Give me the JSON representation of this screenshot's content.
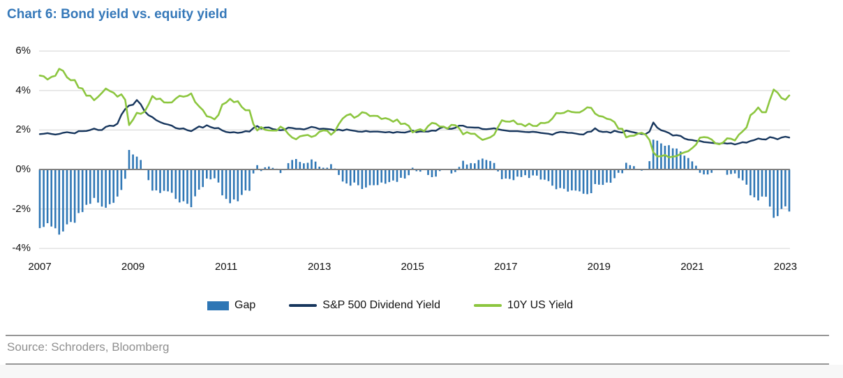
{
  "title": "Chart 6: Bond yield vs. equity yield",
  "footer": {
    "source": "Source: Schroders, Bloomberg"
  },
  "colors": {
    "title_text": "#3578b9",
    "gap_bar": "#2e76b5",
    "dividend_line": "#17365d",
    "treasury_line": "#8cc63f",
    "gridline": "#d9d9d9",
    "zero_line": "#808080",
    "axis_text": "#111111",
    "source_text": "#8f8f8f",
    "rule_line": "#969696",
    "footer_bg": "#f7f7f7"
  },
  "chart_data": {
    "type": "combo-bar-line",
    "title": "Chart 6: Bond yield vs. equity yield",
    "x_start": "2007-01",
    "x_freq": "monthly",
    "grid": "horizontal",
    "legend_position": "bottom-center",
    "ylim": [
      -4.5,
      6.5
    ],
    "y_ticks": [
      {
        "label": "6%",
        "value": 6
      },
      {
        "label": "4%",
        "value": 4
      },
      {
        "label": "2%",
        "value": 2
      },
      {
        "label": "0%",
        "value": 0
      },
      {
        "label": "-2%",
        "value": -2
      },
      {
        "label": "-4%",
        "value": -4
      }
    ],
    "x_ticks": [
      {
        "label": "2007",
        "year": 2007
      },
      {
        "label": "2009",
        "year": 2009
      },
      {
        "label": "2011",
        "year": 2011
      },
      {
        "label": "2013",
        "year": 2013
      },
      {
        "label": "2015",
        "year": 2015
      },
      {
        "label": "2017",
        "year": 2017
      },
      {
        "label": "2019",
        "year": 2019
      },
      {
        "label": "2021",
        "year": 2021
      },
      {
        "label": "2023",
        "year": 2023
      }
    ],
    "series": [
      {
        "name": "Gap",
        "type": "bar",
        "color": "#2e76b5",
        "values": [
          -2.97,
          -2.91,
          -2.72,
          -2.89,
          -2.98,
          -3.3,
          -3.14,
          -2.78,
          -2.66,
          -2.7,
          -2.21,
          -2.16,
          -1.79,
          -1.74,
          -1.44,
          -1.68,
          -1.88,
          -1.94,
          -1.76,
          -1.69,
          -1.37,
          -1.04,
          -0.47,
          0.99,
          0.76,
          0.65,
          0.48,
          0.02,
          -0.54,
          -1.07,
          -1.06,
          -1.19,
          -1.08,
          -1.11,
          -1.18,
          -1.49,
          -1.67,
          -1.61,
          -1.74,
          -1.91,
          -1.36,
          -1.02,
          -0.89,
          -0.46,
          -0.5,
          -0.45,
          -0.66,
          -1.31,
          -1.49,
          -1.71,
          -1.52,
          -1.61,
          -1.29,
          -1.06,
          -1.08,
          -0.2,
          0.22,
          -0.08,
          0.11,
          0.15,
          0.08,
          0.04,
          -0.18,
          -0.04,
          0.32,
          0.48,
          0.53,
          0.38,
          0.31,
          0.34,
          0.51,
          0.4,
          0.14,
          0.09,
          0.09,
          0.27,
          0.05,
          -0.28,
          -0.61,
          -0.71,
          -0.82,
          -0.66,
          -0.8,
          -0.99,
          -0.91,
          -0.8,
          -0.8,
          -0.79,
          -0.66,
          -0.72,
          -0.64,
          -0.56,
          -0.63,
          -0.42,
          -0.46,
          -0.29,
          0.09,
          -0.09,
          -0.11,
          -0.02,
          -0.28,
          -0.39,
          -0.36,
          -0.08,
          -0.01,
          -0.01,
          -0.2,
          -0.13,
          0.13,
          0.44,
          0.25,
          0.32,
          0.31,
          0.48,
          0.55,
          0.48,
          0.43,
          0.33,
          -0.1,
          -0.49,
          -0.46,
          -0.48,
          -0.54,
          -0.36,
          -0.38,
          -0.29,
          -0.43,
          -0.3,
          -0.31,
          -0.51,
          -0.52,
          -0.59,
          -0.82,
          -1.0,
          -0.94,
          -0.98,
          -1.12,
          -1.06,
          -1.07,
          -1.11,
          -1.23,
          -1.25,
          -1.2,
          -0.74,
          -0.77,
          -0.78,
          -0.66,
          -0.67,
          -0.44,
          -0.17,
          -0.19,
          0.34,
          0.22,
          0.17,
          0.02,
          -0.06,
          0.03,
          0.42,
          1.51,
          1.46,
          1.32,
          1.2,
          1.23,
          1.07,
          1.06,
          0.91,
          0.7,
          0.58,
          0.41,
          0.19,
          -0.17,
          -0.25,
          -0.25,
          -0.17,
          0.01,
          0.02,
          -0.03,
          -0.27,
          -0.23,
          -0.2,
          -0.44,
          -0.55,
          -0.77,
          -1.31,
          -1.41,
          -1.57,
          -1.37,
          -1.38,
          -1.88,
          -2.45,
          -2.36,
          -2.0,
          -1.87,
          -2.13
        ]
      },
      {
        "name": "S&P 500 Dividend Yield",
        "type": "line",
        "color": "#17365d",
        "values": [
          1.79,
          1.81,
          1.84,
          1.8,
          1.77,
          1.8,
          1.86,
          1.89,
          1.86,
          1.83,
          1.94,
          1.94,
          1.95,
          2.0,
          2.07,
          2.0,
          2.0,
          2.16,
          2.22,
          2.2,
          2.32,
          2.77,
          3.06,
          3.24,
          3.28,
          3.52,
          3.3,
          2.95,
          2.75,
          2.65,
          2.5,
          2.4,
          2.32,
          2.28,
          2.22,
          2.1,
          2.06,
          2.08,
          1.99,
          1.94,
          2.06,
          2.18,
          2.12,
          2.24,
          2.15,
          2.09,
          2.1,
          1.98,
          1.9,
          1.87,
          1.89,
          1.85,
          1.88,
          1.94,
          1.92,
          2.1,
          2.2,
          2.07,
          2.12,
          2.13,
          2.05,
          2.01,
          1.99,
          2.01,
          2.12,
          2.1,
          2.06,
          2.06,
          2.03,
          2.09,
          2.16,
          2.12,
          2.05,
          2.07,
          2.05,
          2.03,
          1.98,
          2.02,
          1.97,
          2.03,
          1.99,
          1.96,
          1.92,
          1.91,
          1.95,
          1.91,
          1.92,
          1.92,
          1.9,
          1.88,
          1.9,
          1.86,
          1.9,
          1.88,
          1.87,
          1.92,
          1.97,
          1.89,
          1.93,
          1.92,
          1.92,
          1.97,
          1.96,
          2.09,
          2.16,
          2.06,
          2.06,
          2.11,
          2.22,
          2.22,
          2.14,
          2.13,
          2.12,
          2.12,
          2.05,
          2.04,
          2.06,
          2.09,
          2.04,
          2.0,
          1.97,
          1.94,
          1.94,
          1.94,
          1.92,
          1.9,
          1.89,
          1.91,
          1.89,
          1.85,
          1.83,
          1.81,
          1.76,
          1.86,
          1.9,
          1.89,
          1.86,
          1.85,
          1.82,
          1.78,
          1.77,
          1.9,
          1.92,
          2.09,
          1.94,
          1.9,
          1.91,
          1.86,
          1.96,
          1.9,
          1.87,
          1.97,
          1.92,
          1.88,
          1.83,
          1.8,
          1.79,
          1.92,
          2.38,
          2.12,
          1.99,
          1.93,
          1.85,
          1.72,
          1.74,
          1.7,
          1.57,
          1.51,
          1.49,
          1.45,
          1.44,
          1.39,
          1.37,
          1.35,
          1.33,
          1.3,
          1.34,
          1.31,
          1.33,
          1.27,
          1.32,
          1.38,
          1.36,
          1.44,
          1.49,
          1.57,
          1.53,
          1.52,
          1.64,
          1.6,
          1.53,
          1.62,
          1.66,
          1.62
        ]
      },
      {
        "name": "10Y US Yield",
        "type": "line",
        "color": "#8cc63f",
        "values": [
          4.76,
          4.72,
          4.56,
          4.69,
          4.75,
          5.1,
          5.0,
          4.67,
          4.52,
          4.53,
          4.15,
          4.1,
          3.74,
          3.74,
          3.51,
          3.68,
          3.88,
          4.1,
          3.98,
          3.89,
          3.69,
          3.81,
          3.53,
          2.25,
          2.52,
          2.87,
          2.82,
          2.93,
          3.29,
          3.72,
          3.56,
          3.59,
          3.4,
          3.39,
          3.4,
          3.59,
          3.73,
          3.69,
          3.73,
          3.85,
          3.42,
          3.2,
          3.01,
          2.7,
          2.65,
          2.54,
          2.76,
          3.29,
          3.39,
          3.58,
          3.41,
          3.46,
          3.17,
          3.0,
          3.0,
          2.3,
          1.98,
          2.15,
          2.01,
          1.98,
          1.97,
          1.97,
          2.17,
          2.05,
          1.8,
          1.62,
          1.53,
          1.68,
          1.72,
          1.75,
          1.65,
          1.72,
          1.91,
          1.98,
          1.96,
          1.76,
          1.93,
          2.3,
          2.58,
          2.74,
          2.81,
          2.62,
          2.72,
          2.9,
          2.86,
          2.71,
          2.72,
          2.71,
          2.56,
          2.6,
          2.54,
          2.42,
          2.53,
          2.3,
          2.33,
          2.21,
          1.88,
          1.98,
          2.04,
          1.94,
          2.2,
          2.36,
          2.32,
          2.17,
          2.17,
          2.07,
          2.26,
          2.24,
          2.09,
          1.78,
          1.89,
          1.81,
          1.81,
          1.64,
          1.5,
          1.56,
          1.63,
          1.76,
          2.14,
          2.49,
          2.43,
          2.42,
          2.48,
          2.3,
          2.3,
          2.19,
          2.32,
          2.21,
          2.2,
          2.36,
          2.35,
          2.4,
          2.58,
          2.86,
          2.84,
          2.87,
          2.98,
          2.91,
          2.89,
          2.89,
          3.0,
          3.15,
          3.12,
          2.83,
          2.71,
          2.68,
          2.57,
          2.53,
          2.4,
          2.07,
          2.06,
          1.63,
          1.7,
          1.71,
          1.81,
          1.86,
          1.76,
          1.5,
          0.87,
          0.66,
          0.67,
          0.73,
          0.62,
          0.65,
          0.68,
          0.79,
          0.87,
          0.93,
          1.08,
          1.26,
          1.61,
          1.64,
          1.62,
          1.52,
          1.32,
          1.28,
          1.37,
          1.58,
          1.56,
          1.47,
          1.76,
          1.93,
          2.13,
          2.75,
          2.9,
          3.14,
          2.9,
          2.9,
          3.52,
          4.05,
          3.89,
          3.62,
          3.53,
          3.75
        ]
      }
    ]
  }
}
